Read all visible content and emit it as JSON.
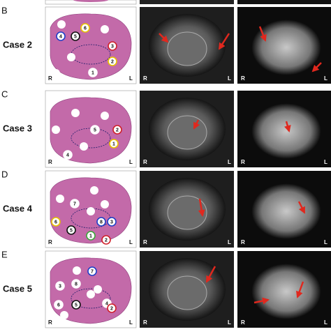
{
  "panels": [
    {
      "letter": "B",
      "case": "Case 2",
      "sites": [
        "6",
        "4",
        "5",
        "3",
        "2",
        "1"
      ]
    },
    {
      "letter": "C",
      "case": "Case 3",
      "sites": [
        "5",
        "2",
        "1",
        "4"
      ]
    },
    {
      "letter": "D",
      "case": "Case 4",
      "sites": [
        "7",
        "6",
        "5",
        "8",
        "3",
        "1",
        "2"
      ]
    },
    {
      "letter": "E",
      "case": "Case 5",
      "sites": [
        "7",
        "8",
        "3",
        "6",
        "5",
        "4",
        "2"
      ]
    }
  ],
  "orientation": {
    "right": "R",
    "left": "L"
  }
}
